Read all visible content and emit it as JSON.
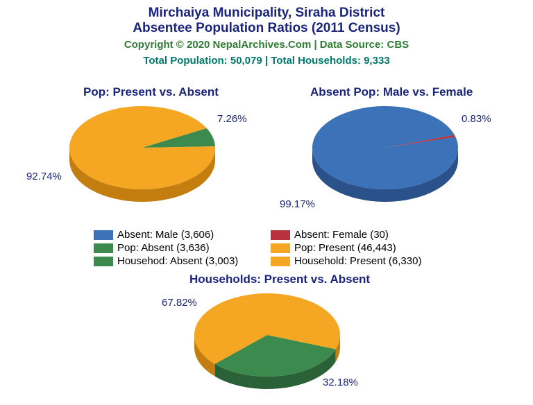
{
  "title_line1": "Mirchaiya Municipality, Siraha District",
  "title_line2": "Absentee Population Ratios (2011 Census)",
  "copyright": "Copyright © 2020 NepalArchives.Com | Data Source: CBS",
  "totals": "Total Population: 50,079 | Total Households: 9,333",
  "colors": {
    "title": "#1a237e",
    "copyright": "#2e7d32",
    "totals": "#00796b",
    "label": "#1a237e",
    "blue": "#3b72b8",
    "blue_side": "#2a5189",
    "red": "#b8323d",
    "green": "#3d8a4e",
    "green_side": "#2a6137",
    "orange": "#f5a623",
    "orange_side": "#c47e0f"
  },
  "chart1": {
    "title": "Pop: Present vs. Absent",
    "slices": [
      {
        "label": "92.74%",
        "value": 92.74,
        "color": "#f5a623",
        "side": "#c47e0f"
      },
      {
        "label": "7.26%",
        "value": 7.26,
        "color": "#3d8a4e",
        "side": "#2a6137"
      }
    ]
  },
  "chart2": {
    "title": "Absent Pop: Male vs. Female",
    "slices": [
      {
        "label": "99.17%",
        "value": 99.17,
        "color": "#3b72b8",
        "side": "#2a5189"
      },
      {
        "label": "0.83%",
        "value": 0.83,
        "color": "#b8323d",
        "side": "#8a2530"
      }
    ]
  },
  "chart3": {
    "title": "Households: Present vs. Absent",
    "slices": [
      {
        "label": "67.82%",
        "value": 67.82,
        "color": "#f5a623",
        "side": "#c47e0f"
      },
      {
        "label": "32.18%",
        "value": 32.18,
        "color": "#3d8a4e",
        "side": "#2a6137"
      }
    ]
  },
  "legend": [
    {
      "color": "#3b72b8",
      "text": "Absent: Male (3,606)"
    },
    {
      "color": "#b8323d",
      "text": "Absent: Female (30)"
    },
    {
      "color": "#3d8a4e",
      "text": "Pop: Absent (3,636)"
    },
    {
      "color": "#f5a623",
      "text": "Pop: Present (46,443)"
    },
    {
      "color": "#3d8a4e",
      "text": "Househod: Absent (3,003)"
    },
    {
      "color": "#f5a623",
      "text": "Household: Present (6,330)"
    }
  ]
}
